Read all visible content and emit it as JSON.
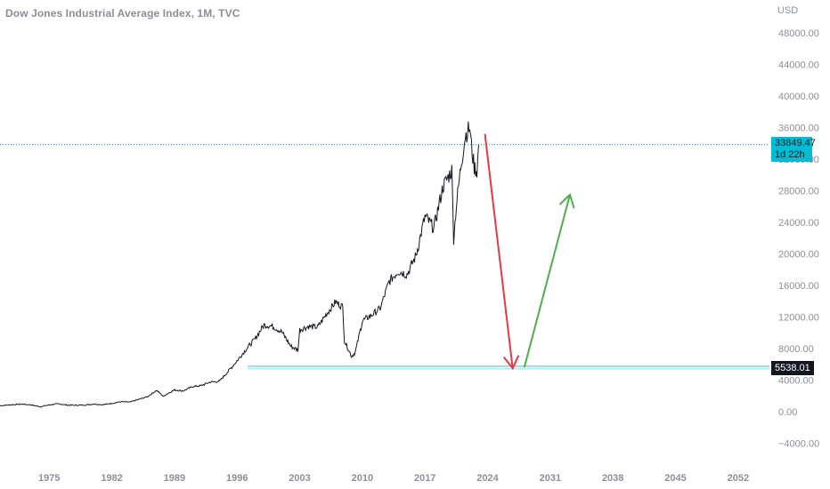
{
  "header": {
    "title": "Dow Jones Industrial Average Index, 1M, TVC",
    "currency": "USD"
  },
  "badges": {
    "price_value": "33849.47",
    "price_countdown": "1d 22h",
    "support_value": "5538.01"
  },
  "colors": {
    "price_line": "#1e88e5",
    "price_badge": "#00bcd4",
    "support_line": "#26c6da",
    "support_badge": "#131722",
    "down_arrow": "#e53945",
    "up_arrow": "#4caf50",
    "series": "#131722"
  },
  "chart_data": {
    "type": "line",
    "title": "Dow Jones Industrial Average Index, 1M, TVC",
    "xlabel": "",
    "ylabel": "",
    "xlim": [
      1969.5,
      2055.5
    ],
    "ylim": [
      -5000,
      50000
    ],
    "grid": false,
    "y_ticks": [
      -4000,
      0,
      4000,
      8000,
      12000,
      16000,
      20000,
      24000,
      28000,
      32000,
      36000,
      40000,
      44000,
      48000
    ],
    "y_tick_labels": [
      "−4000.00",
      "0.00",
      "4000.00",
      "8000.00",
      "12000.00",
      "16000.00",
      "20000.00",
      "24000.00",
      "28000.00",
      "32000.00",
      "36000.00",
      "40000.00",
      "44000.00",
      "48000.00"
    ],
    "x_ticks": [
      1975,
      1982,
      1989,
      1996,
      2003,
      2010,
      2017,
      2024,
      2031,
      2038,
      2045,
      2052
    ],
    "x_tick_labels": [
      "1975",
      "1982",
      "1989",
      "1996",
      "2003",
      "2010",
      "2017",
      "2024",
      "2031",
      "2038",
      "2045",
      "2052"
    ],
    "series": [
      {
        "x": [
          1969.5,
          1970,
          1971,
          1972,
          1973,
          1974,
          1975,
          1976,
          1977,
          1978,
          1979,
          1980,
          1981,
          1982,
          1983,
          1984,
          1985,
          1986,
          1987,
          1987.8,
          1988,
          1989,
          1990,
          1991,
          1992,
          1993,
          1994,
          1995,
          1996,
          1997,
          1998,
          1999,
          2000,
          2001,
          2002,
          2002.8,
          2003,
          2004,
          2005,
          2006,
          2007,
          2007.8,
          2008,
          2008.8,
          2009.2,
          2010,
          2011,
          2012,
          2013,
          2014,
          2015,
          2016,
          2017,
          2018,
          2019,
          2020,
          2020.2,
          2020.5,
          2021,
          2021.5,
          2022,
          2022.2,
          2022.5,
          2022.8,
          2023
        ],
        "y": [
          750,
          800,
          890,
          950,
          850,
          620,
          850,
          1000,
          830,
          810,
          840,
          960,
          880,
          1050,
          1260,
          1210,
          1550,
          1900,
          2700,
          1900,
          2150,
          2750,
          2630,
          3170,
          3300,
          3750,
          3830,
          5100,
          6450,
          7900,
          9200,
          11000,
          10800,
          10100,
          8300,
          7800,
          10400,
          10800,
          10700,
          12400,
          13900,
          13300,
          9000,
          7000,
          7500,
          11500,
          12200,
          13100,
          16500,
          17800,
          17400,
          19800,
          24700,
          23300,
          28500,
          30600,
          21900,
          26000,
          31000,
          35000,
          36000,
          33500,
          31000,
          30500,
          33849
        ]
      }
    ],
    "horizontal_lines": [
      {
        "y": 33849.47,
        "style": "dotted"
      },
      {
        "y": 5538.01,
        "style": "double"
      }
    ],
    "annotations": [
      {
        "type": "arrow",
        "direction": "down",
        "from": [
          2023.7,
          35200
        ],
        "to": [
          2026.8,
          5500
        ]
      },
      {
        "type": "arrow",
        "direction": "up",
        "from": [
          2028.1,
          5600
        ],
        "to": [
          2033.2,
          27500
        ]
      }
    ]
  }
}
